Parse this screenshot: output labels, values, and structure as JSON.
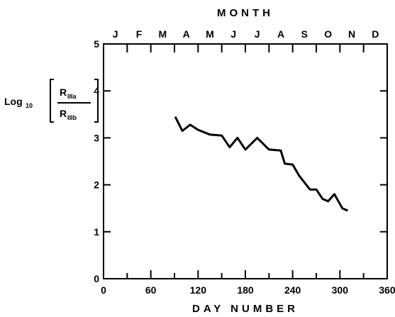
{
  "chart_data": {
    "type": "line",
    "title": "",
    "xlabel": "DAY NUMBER",
    "top_axis_label": "MONTH",
    "ylabel": {
      "prefix": "Log",
      "subscript": "10",
      "numerator": "R",
      "numerator_subscript": "IIIa",
      "denominator": "R",
      "denominator_subscript": "IIIb"
    },
    "xlim": [
      0,
      360
    ],
    "ylim": [
      0,
      5
    ],
    "x_ticks": [
      0,
      60,
      120,
      180,
      240,
      300,
      360
    ],
    "x_tick_labels": [
      "0",
      "60",
      "120",
      "180",
      "240",
      "300",
      "360"
    ],
    "y_ticks": [
      0,
      1,
      2,
      3,
      4,
      5
    ],
    "y_tick_labels": [
      "0",
      "1",
      "2",
      "3",
      "4",
      "5"
    ],
    "months": [
      "J",
      "F",
      "M",
      "A",
      "M",
      "J",
      "J",
      "A",
      "S",
      "O",
      "N",
      "D"
    ],
    "grid": false,
    "series": [
      {
        "x": [
          91,
          100,
          110,
          120,
          135,
          150,
          160,
          170,
          180,
          195,
          210,
          225,
          230,
          240,
          248,
          255,
          262,
          270,
          278,
          285,
          293,
          303,
          310
        ],
        "y": [
          3.45,
          3.15,
          3.28,
          3.17,
          3.07,
          3.05,
          2.8,
          3.0,
          2.75,
          3.0,
          2.75,
          2.73,
          2.45,
          2.43,
          2.2,
          2.05,
          1.9,
          1.9,
          1.7,
          1.65,
          1.8,
          1.5,
          1.45
        ]
      }
    ]
  }
}
